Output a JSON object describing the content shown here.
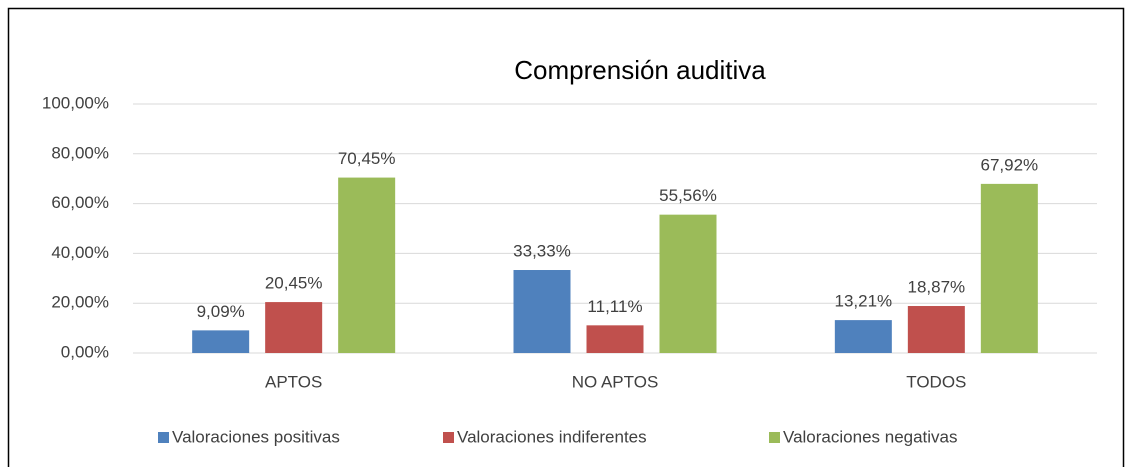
{
  "chart_data": {
    "type": "bar",
    "title": "Comprensión auditiva",
    "categories": [
      "APTOS",
      "NO APTOS",
      "TODOS"
    ],
    "series": [
      {
        "name": "Valoraciones positivas",
        "color": "#4f81bd",
        "values": [
          9.09,
          33.33,
          13.21
        ],
        "value_labels": [
          "9,09%",
          "33,33%",
          "13,21%"
        ]
      },
      {
        "name": "Valoraciones indiferentes",
        "color": "#c0504d",
        "values": [
          20.45,
          11.11,
          18.87
        ],
        "value_labels": [
          "20,45%",
          "11,11%",
          "18,87%"
        ]
      },
      {
        "name": "Valoraciones negativas",
        "color": "#9bbb59",
        "values": [
          70.45,
          55.56,
          67.92
        ],
        "value_labels": [
          "70,45%",
          "55,56%",
          "67,92%"
        ]
      }
    ],
    "ylim": [
      0,
      100
    ],
    "yticks": [
      {
        "value": 0,
        "label": "0,00%"
      },
      {
        "value": 20,
        "label": "20,00%"
      },
      {
        "value": 40,
        "label": "40,00%"
      },
      {
        "value": 60,
        "label": "60,00%"
      },
      {
        "value": 80,
        "label": "80,00%"
      },
      {
        "value": 100,
        "label": "100,00%"
      }
    ],
    "grid": true,
    "legend": "bottom"
  }
}
